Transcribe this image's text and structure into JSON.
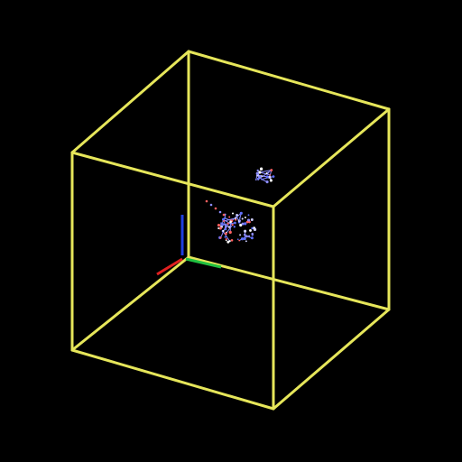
{
  "viewer": {
    "background_color": "#000000",
    "box_color": "#e6e65a",
    "axis_colors": {
      "x": "#e02020",
      "y": "#20c040",
      "z": "#2040e0"
    },
    "atom_colors": [
      "#8c8cff",
      "#ff6060",
      "#ffffff",
      "#6070ff",
      "#d0d0ff"
    ]
  }
}
